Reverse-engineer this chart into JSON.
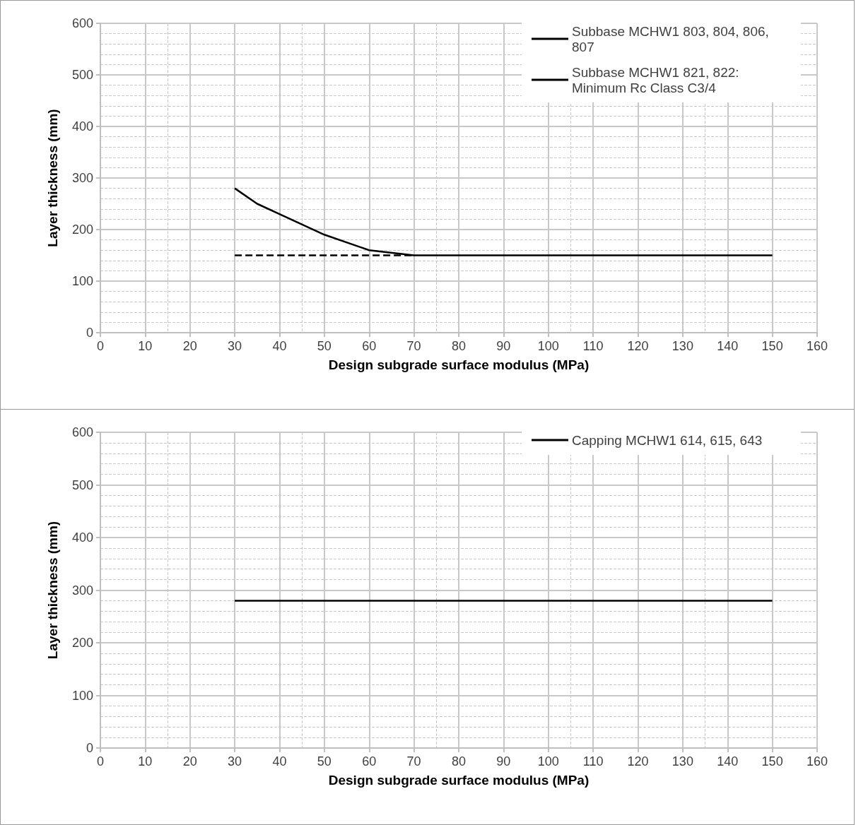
{
  "chart_data": [
    {
      "type": "line",
      "xlabel": "Design subgrade surface modulus (MPa)",
      "ylabel": "Layer thickness (mm)",
      "xlim": [
        0,
        160
      ],
      "xticks": [
        0,
        10,
        20,
        30,
        40,
        50,
        60,
        70,
        80,
        90,
        100,
        110,
        120,
        130,
        140,
        150,
        160
      ],
      "ylim": [
        0,
        600
      ],
      "yticks": [
        0,
        100,
        200,
        300,
        400,
        500,
        600
      ],
      "grid": true,
      "legend": "top right",
      "marker": "none",
      "series": [
        {
          "name": "Subbase MCHW1 803, 804, 806, 807",
          "color": "#000000",
          "line_style": "solid",
          "x": [
            30,
            35,
            40,
            50,
            60,
            70,
            150
          ],
          "values": [
            280,
            250,
            230,
            190,
            160,
            150,
            150
          ]
        },
        {
          "name": "Subbase MCHW1 821, 822: Minimum Rc Class C3/4",
          "color": "#000000",
          "line_style": "dashed",
          "x": [
            30,
            70
          ],
          "values": [
            150,
            150
          ]
        }
      ]
    },
    {
      "type": "line",
      "xlabel": "Design subgrade surface modulus (MPa)",
      "ylabel": "Layer thickness (mm)",
      "xlim": [
        0,
        160
      ],
      "xticks": [
        0,
        10,
        20,
        30,
        40,
        50,
        60,
        70,
        80,
        90,
        100,
        110,
        120,
        130,
        140,
        150,
        160
      ],
      "ylim": [
        0,
        600
      ],
      "yticks": [
        0,
        100,
        200,
        300,
        400,
        500,
        600
      ],
      "grid": true,
      "legend": "top right",
      "marker": "none",
      "series": [
        {
          "name": "Capping MCHW1 614, 615, 643",
          "color": "#000000",
          "line_style": "solid",
          "x": [
            30,
            150
          ],
          "values": [
            280,
            280
          ]
        }
      ]
    }
  ]
}
